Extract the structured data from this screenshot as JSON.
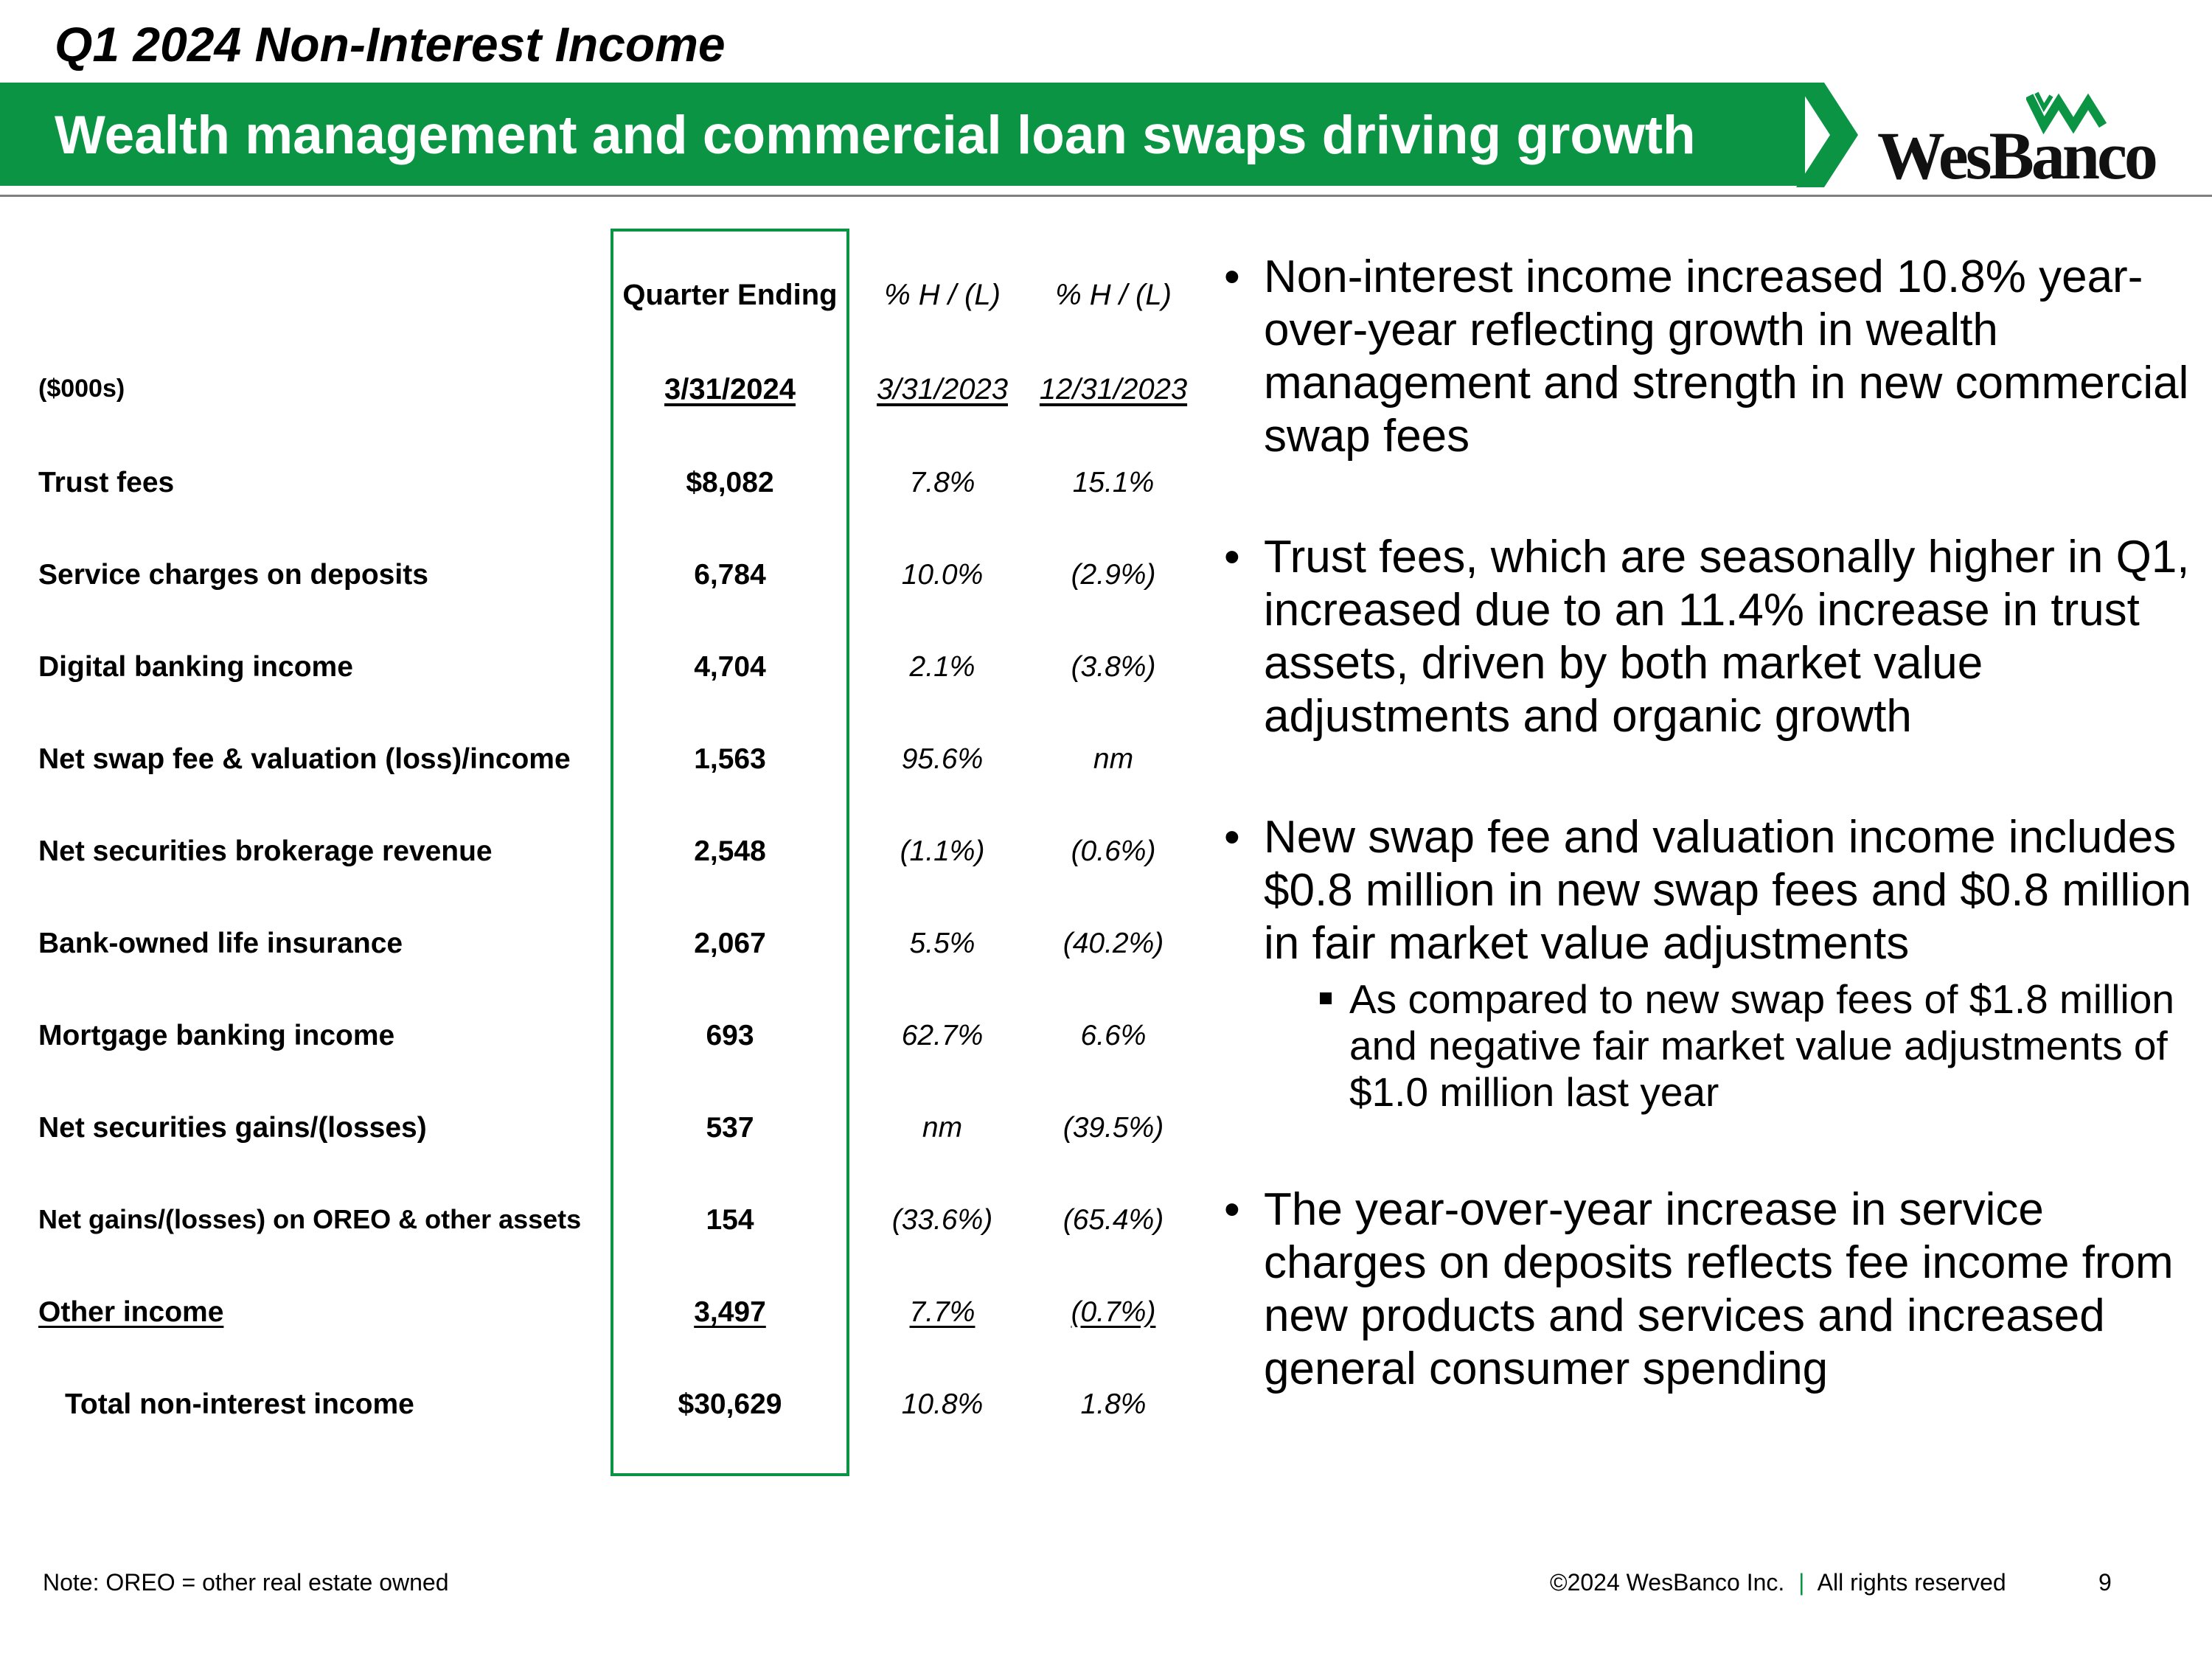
{
  "slide": {
    "title": "Q1 2024 Non-Interest Income",
    "banner": "Wealth management and commercial loan swaps driving growth",
    "logo_text": "WesBanco"
  },
  "table": {
    "header1": {
      "c1": "Quarter Ending",
      "c2": "% H / (L)",
      "c3": "% H / (L)"
    },
    "header2": {
      "label": "($000s)",
      "c1": "3/31/2024",
      "c2": "3/31/2023",
      "c3": "12/31/2023"
    },
    "rows": [
      {
        "label": "Trust fees",
        "v": "$8,082",
        "yoy": "7.8%",
        "qoq": "15.1%"
      },
      {
        "label": "Service charges on deposits",
        "v": "6,784",
        "yoy": "10.0%",
        "qoq": "(2.9%)"
      },
      {
        "label": "Digital banking income",
        "v": "4,704",
        "yoy": "2.1%",
        "qoq": "(3.8%)"
      },
      {
        "label": "Net swap fee & valuation (loss)/income",
        "v": "1,563",
        "yoy": "95.6%",
        "qoq": "nm"
      },
      {
        "label": "Net securities brokerage revenue",
        "v": "2,548",
        "yoy": "(1.1%)",
        "qoq": "(0.6%)"
      },
      {
        "label": "Bank-owned life insurance",
        "v": "2,067",
        "yoy": "5.5%",
        "qoq": "(40.2%)"
      },
      {
        "label": "Mortgage banking income",
        "v": "693",
        "yoy": "62.7%",
        "qoq": "6.6%"
      },
      {
        "label": "Net securities gains/(losses)",
        "v": "537",
        "yoy": "nm",
        "qoq": "(39.5%)"
      },
      {
        "label": "Net gains/(losses) on OREO & other assets",
        "v": "154",
        "yoy": "(33.6%)",
        "qoq": "(65.4%)"
      },
      {
        "label": "Other income",
        "v": "3,497",
        "yoy": "7.7%",
        "qoq": "(0.7%)"
      },
      {
        "label": "Total non-interest income",
        "v": "$30,629",
        "yoy": "10.8%",
        "qoq": "1.8%"
      }
    ]
  },
  "bullets": [
    {
      "text": "Non-interest income increased 10.8% year-over-year reflecting growth in wealth management and strength in new commercial swap fees"
    },
    {
      "text": "Trust fees, which are seasonally higher in Q1, increased due to an 11.4% increase in trust assets, driven by both market value adjustments and organic growth"
    },
    {
      "text": "New swap fee and valuation income includes $0.8 million in new swap fees and $0.8 million in fair market value adjustments",
      "sub": "As compared to new swap fees of $1.8 million and negative fair market value adjustments of $1.0 million last year"
    },
    {
      "text": "The year-over-year increase in service charges on deposits reflects fee income from new products and services and increased general consumer spending"
    }
  ],
  "footer": {
    "note": "Note: OREO = other real estate owned",
    "copyright": "©2024 WesBanco Inc.",
    "separator": "|",
    "rights": "All rights reserved",
    "page": "9"
  },
  "colors": {
    "brand_green": "#0b9444",
    "rule_gray": "#7f7f7f"
  }
}
